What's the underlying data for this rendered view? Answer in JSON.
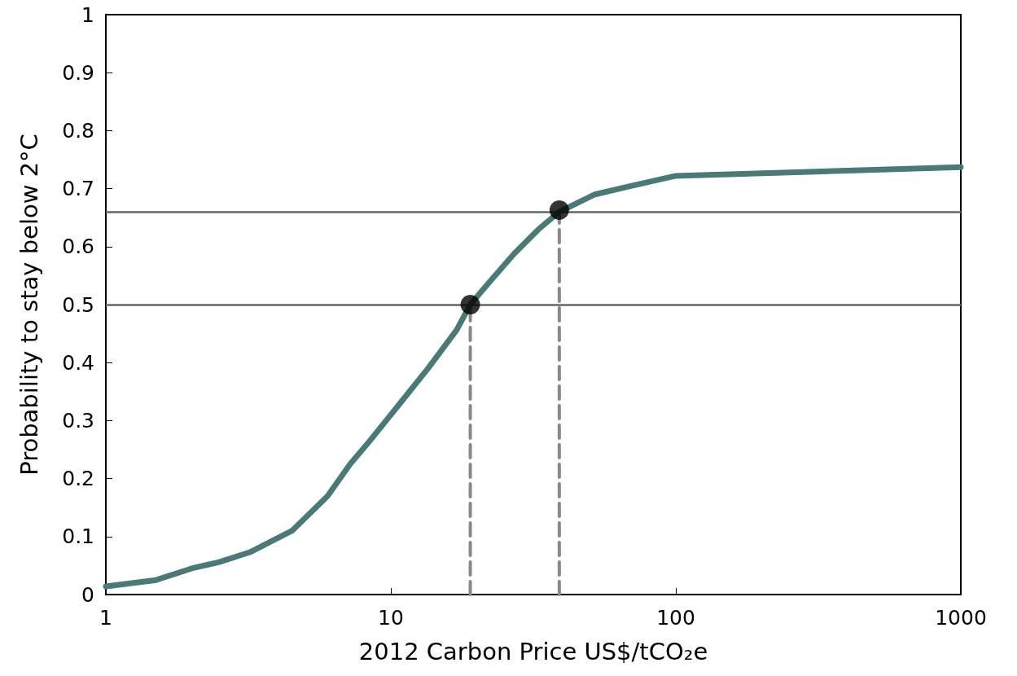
{
  "chart_data": {
    "type": "line",
    "xlabel": "2012 Carbon Price US$/tCO₂e",
    "ylabel": "Probability to stay below 2°C",
    "log": "x",
    "xlim": [
      1,
      1000
    ],
    "xticks": [
      1,
      10,
      100,
      1000
    ],
    "ylim": [
      0,
      1
    ],
    "yticks": [
      0,
      0.1,
      0.2,
      0.3,
      0.4,
      0.5,
      0.6,
      0.7,
      0.8,
      0.9,
      1
    ],
    "ref_lines": [
      {
        "axis": "y",
        "value": 0.5,
        "color": "#666666",
        "line_style": "solid"
      },
      {
        "axis": "y",
        "value": 0.663,
        "color": "#666666",
        "line_style": "solid"
      }
    ],
    "series": [
      {
        "color": "#4a7a78",
        "marker": "none",
        "line_style": "solid",
        "x": [
          1,
          1.5,
          2,
          2.5,
          3.2,
          4.5,
          6,
          7.2,
          8.5,
          10.5,
          13.5,
          17,
          19,
          22,
          27,
          33,
          39,
          52,
          70,
          100,
          1000
        ],
        "values": [
          0.014,
          0.025,
          0.045,
          0.056,
          0.073,
          0.11,
          0.17,
          0.225,
          0.267,
          0.323,
          0.39,
          0.456,
          0.5,
          0.537,
          0.587,
          0.63,
          0.66,
          0.69,
          0.705,
          0.722,
          0.737
        ]
      },
      {
        "type": "line",
        "color": "#888888",
        "marker": "none",
        "line_style": "dashed",
        "x": [
          19,
          19
        ],
        "values": [
          0,
          0.5
        ]
      },
      {
        "type": "line",
        "color": "#888888",
        "marker": "none",
        "line_style": "dashed",
        "x": [
          39,
          39
        ],
        "values": [
          0,
          0.663
        ]
      },
      {
        "type": "scatter",
        "color": "#000000",
        "marker": "circle",
        "x": [
          19,
          39
        ],
        "values": [
          0.5,
          0.663
        ]
      }
    ]
  }
}
